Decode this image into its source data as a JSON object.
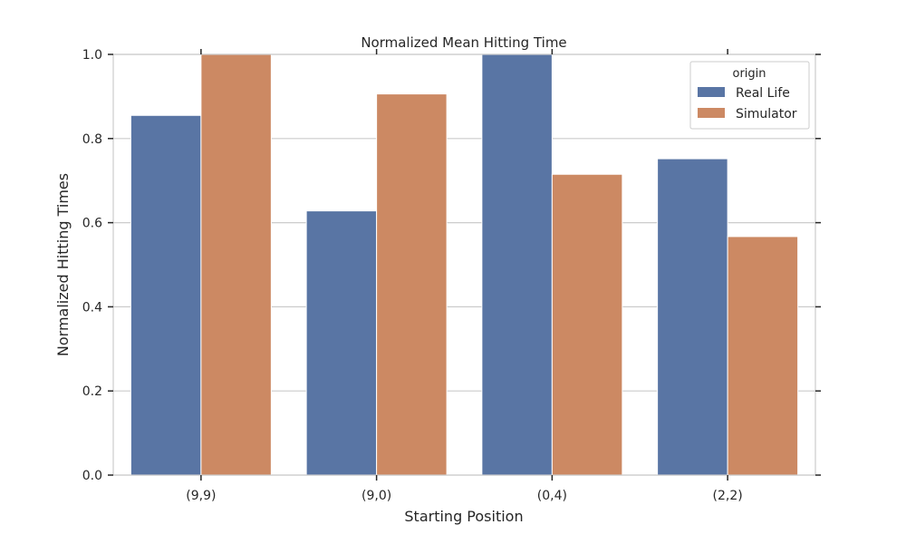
{
  "chart_data": {
    "type": "bar",
    "title": "Normalized Mean Hitting Time",
    "xlabel": "Starting Position",
    "ylabel": "Normalized Hitting Times",
    "categories": [
      "(9,9)",
      "(9,0)",
      "(0,4)",
      "(2,2)"
    ],
    "series": [
      {
        "name": "Real Life",
        "color": "#5975a4",
        "values": [
          0.855,
          0.628,
          1.0,
          0.752
        ]
      },
      {
        "name": "Simulator",
        "color": "#cc8963",
        "values": [
          1.0,
          0.906,
          0.715,
          0.567
        ]
      }
    ],
    "ylim": [
      0,
      1.0
    ],
    "yticks": [
      "0.0",
      "0.2",
      "0.4",
      "0.6",
      "0.8",
      "1.0"
    ],
    "grid": true,
    "legend": {
      "title": "origin",
      "placement": "top-right"
    }
  }
}
